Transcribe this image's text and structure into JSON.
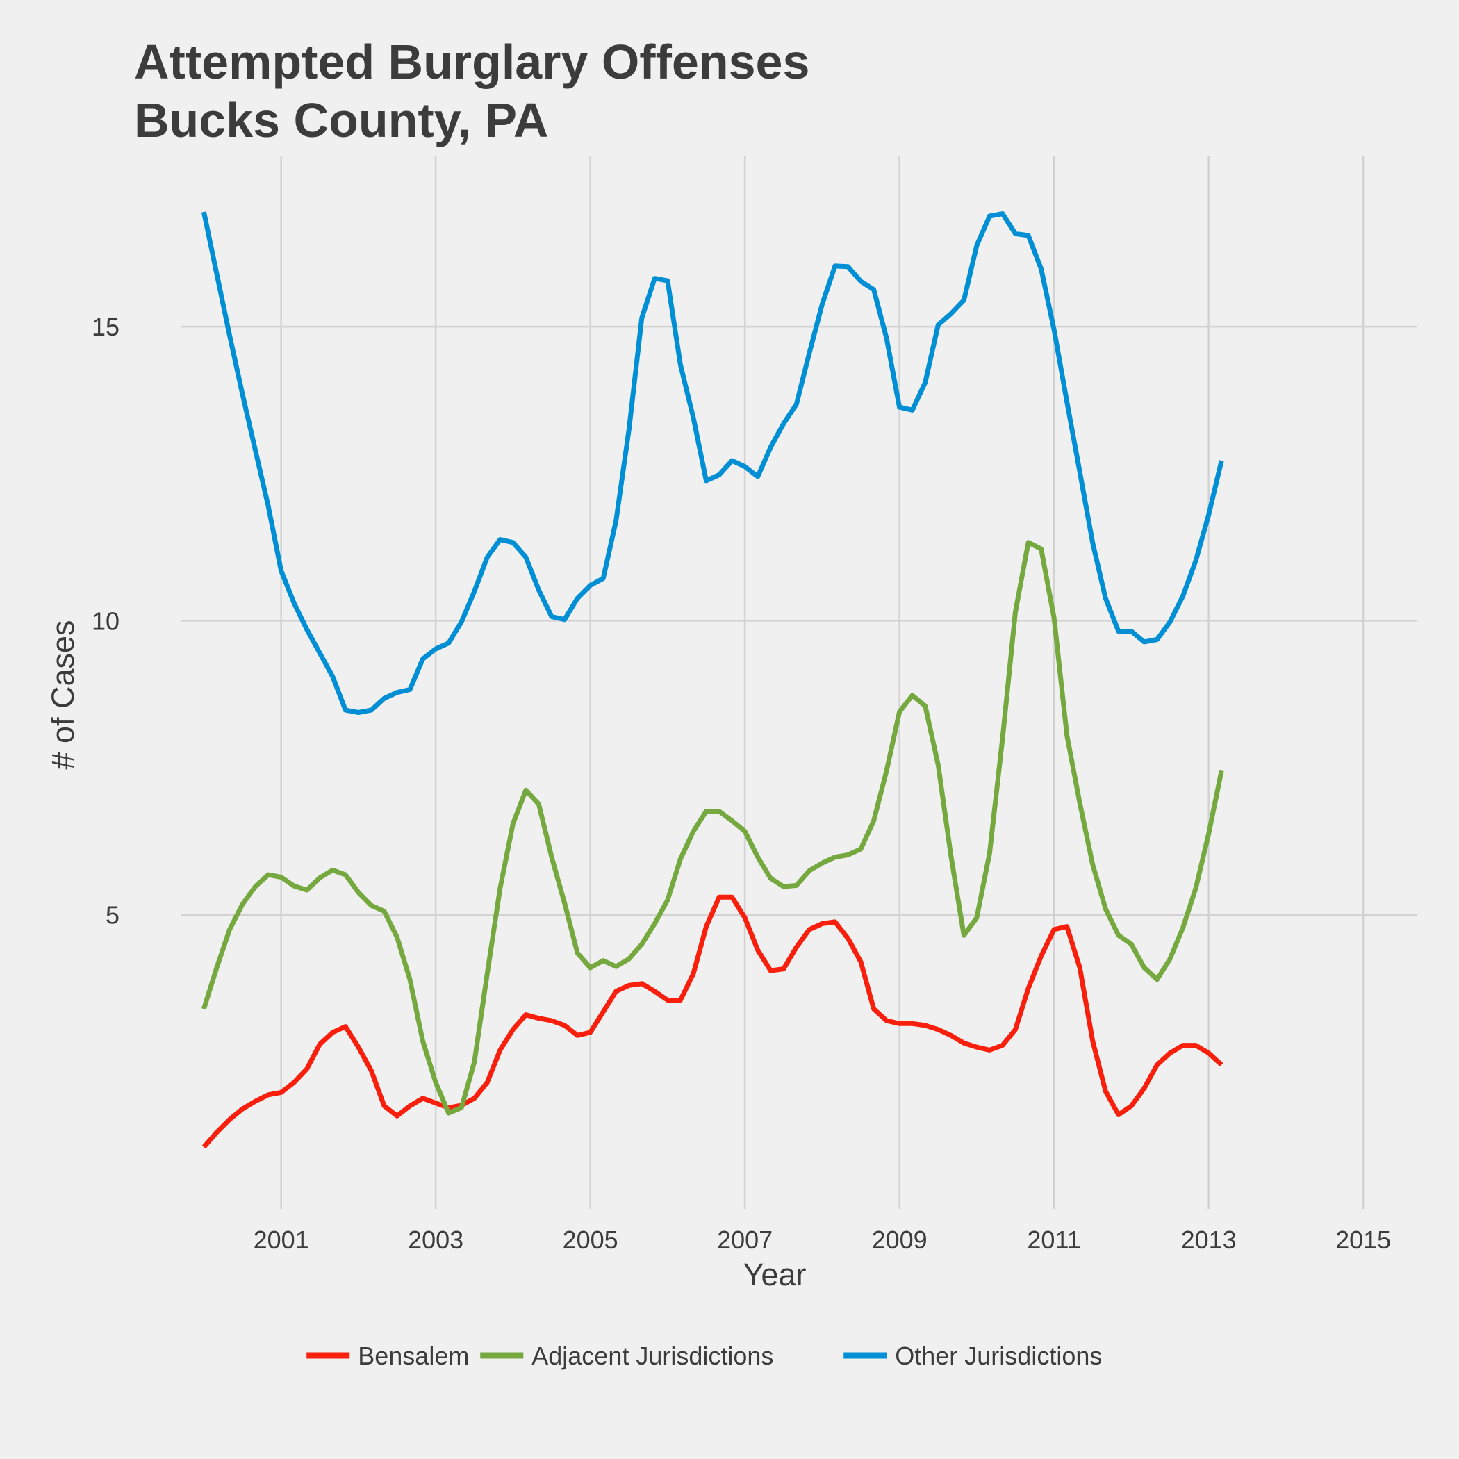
{
  "chart_data": {
    "type": "line",
    "title_lines": [
      "Attempted Burglary Offenses",
      "Bucks County, PA"
    ],
    "xlabel": "Year",
    "ylabel": "# of Cases",
    "x_ticks": [
      2001,
      2003,
      2005,
      2007,
      2009,
      2011,
      2013,
      2015
    ],
    "y_ticks": [
      5,
      10,
      15
    ],
    "xlim": [
      1999.7,
      2015.7
    ],
    "ylim": [
      0.0,
      17.6
    ],
    "grid": true,
    "legend_position": "bottom",
    "x_start": 2000.0,
    "x_step": 0.16667,
    "series": [
      {
        "name": "Bensalem",
        "color": "#f8200c",
        "values": [
          1.05,
          1.3,
          1.52,
          1.7,
          1.83,
          1.94,
          1.98,
          2.15,
          2.38,
          2.8,
          3.0,
          3.1,
          2.75,
          2.35,
          1.75,
          1.58,
          1.75,
          1.88,
          1.8,
          1.72,
          1.76,
          1.88,
          2.15,
          2.7,
          3.05,
          3.3,
          3.24,
          3.2,
          3.12,
          2.95,
          3.0,
          3.35,
          3.7,
          3.8,
          3.83,
          3.7,
          3.55,
          3.55,
          4.0,
          4.8,
          5.3,
          5.3,
          4.95,
          4.4,
          4.05,
          4.08,
          4.45,
          4.75,
          4.85,
          4.88,
          4.6,
          4.2,
          3.4,
          3.2,
          3.15,
          3.15,
          3.12,
          3.05,
          2.95,
          2.82,
          2.75,
          2.7,
          2.78,
          3.05,
          3.75,
          4.3,
          4.75,
          4.8,
          4.1,
          2.85,
          2.0,
          1.6,
          1.75,
          2.05,
          2.45,
          2.65,
          2.78,
          2.78,
          2.65,
          2.45
        ]
      },
      {
        "name": "Adjacent Jurisdictions",
        "color": "#76a840",
        "values": [
          3.4,
          4.1,
          4.75,
          5.18,
          5.48,
          5.68,
          5.64,
          5.49,
          5.42,
          5.63,
          5.76,
          5.68,
          5.38,
          5.16,
          5.06,
          4.62,
          3.9,
          2.85,
          2.15,
          1.63,
          1.72,
          2.5,
          4.0,
          5.45,
          6.55,
          7.12,
          6.88,
          5.98,
          5.2,
          4.35,
          4.1,
          4.22,
          4.12,
          4.25,
          4.5,
          4.85,
          5.25,
          5.95,
          6.42,
          6.76,
          6.76,
          6.6,
          6.42,
          5.98,
          5.62,
          5.48,
          5.5,
          5.75,
          5.88,
          5.98,
          6.02,
          6.12,
          6.6,
          7.45,
          8.45,
          8.73,
          8.55,
          7.55,
          6.0,
          4.65,
          4.95,
          6.05,
          8.0,
          10.15,
          11.33,
          11.22,
          10.05,
          8.05,
          6.9,
          5.85,
          5.1,
          4.65,
          4.5,
          4.1,
          3.9,
          4.25,
          4.78,
          5.45,
          6.38,
          7.45
        ]
      },
      {
        "name": "Other Jurisdictions",
        "color": "#008fd5",
        "values": [
          16.95,
          15.9,
          14.85,
          13.85,
          12.9,
          11.95,
          10.85,
          10.3,
          9.85,
          9.45,
          9.05,
          8.48,
          8.44,
          8.48,
          8.68,
          8.78,
          8.83,
          9.35,
          9.52,
          9.62,
          9.98,
          10.5,
          11.08,
          11.38,
          11.33,
          11.08,
          10.52,
          10.07,
          10.02,
          10.38,
          10.6,
          10.72,
          11.7,
          13.25,
          15.15,
          15.82,
          15.78,
          14.35,
          13.45,
          12.38,
          12.48,
          12.72,
          12.62,
          12.45,
          12.95,
          13.35,
          13.68,
          14.55,
          15.38,
          16.03,
          16.02,
          15.77,
          15.63,
          14.8,
          13.63,
          13.58,
          14.05,
          15.03,
          15.22,
          15.45,
          16.38,
          16.88,
          16.92,
          16.58,
          16.55,
          15.98,
          14.95,
          13.72,
          12.53,
          11.32,
          10.38,
          9.82,
          9.82,
          9.64,
          9.68,
          9.98,
          10.42,
          11.02,
          11.8,
          12.72
        ]
      }
    ]
  }
}
